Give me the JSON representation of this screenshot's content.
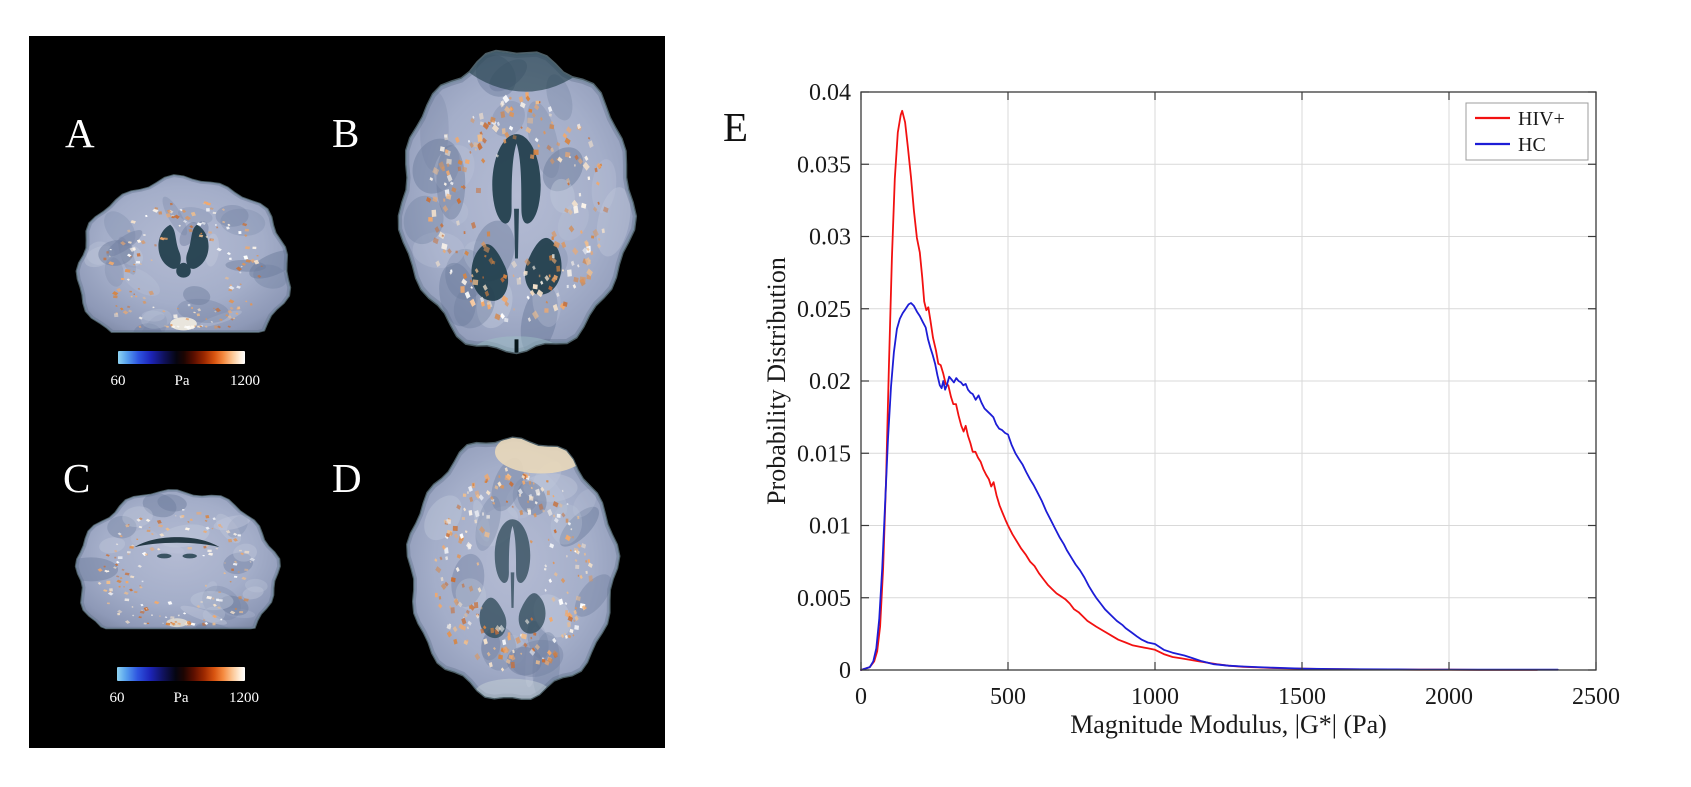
{
  "panel": {
    "labels": {
      "a": "A",
      "b": "B",
      "c": "C",
      "d": "D"
    },
    "colorbars": [
      {
        "min": "60",
        "unit": "Pa",
        "max": "1200"
      },
      {
        "min": "60",
        "unit": "Pa",
        "max": "1200"
      }
    ]
  },
  "chart": {
    "label": "E"
  },
  "chart_data": {
    "type": "line",
    "title": "",
    "xlabel": "Magnitude Modulus, |G*| (Pa)",
    "ylabel": "Probability Distribution",
    "xlim": [
      0,
      2500
    ],
    "ylim": [
      0,
      0.04
    ],
    "xticks": [
      0,
      500,
      1000,
      1500,
      2000,
      2500
    ],
    "xtick_labels": [
      "0",
      "500",
      "1000",
      "1500",
      "2000",
      "2500"
    ],
    "yticks": [
      0,
      0.005,
      0.01,
      0.015,
      0.02,
      0.025,
      0.03,
      0.035,
      0.04
    ],
    "ytick_labels": [
      "0",
      "0.005",
      "0.01",
      "0.015",
      "0.02",
      "0.025",
      "0.03",
      "0.035",
      "0.04"
    ],
    "grid": true,
    "legend_position": "top-right",
    "axis_color": "#3a3a3a",
    "grid_color": "#d9d9d9",
    "series": [
      {
        "name": "HIV+",
        "color": "#f21111",
        "points": [
          [
            0,
            0
          ],
          [
            30,
            0.0002
          ],
          [
            45,
            0.0006
          ],
          [
            55,
            0.0013
          ],
          [
            65,
            0.003
          ],
          [
            75,
            0.007
          ],
          [
            85,
            0.013
          ],
          [
            95,
            0.021
          ],
          [
            105,
            0.0285
          ],
          [
            115,
            0.034
          ],
          [
            125,
            0.0372
          ],
          [
            135,
            0.0384
          ],
          [
            140,
            0.0387
          ],
          [
            150,
            0.0379
          ],
          [
            160,
            0.0361
          ],
          [
            170,
            0.0341
          ],
          [
            180,
            0.0318
          ],
          [
            190,
            0.0299
          ],
          [
            200,
            0.0289
          ],
          [
            208,
            0.0272
          ],
          [
            215,
            0.0255
          ],
          [
            222,
            0.0249
          ],
          [
            229,
            0.0251
          ],
          [
            236,
            0.0242
          ],
          [
            245,
            0.023
          ],
          [
            255,
            0.0221
          ],
          [
            263,
            0.0212
          ],
          [
            271,
            0.0211
          ],
          [
            280,
            0.0205
          ],
          [
            288,
            0.0198
          ],
          [
            297,
            0.0197
          ],
          [
            306,
            0.0189
          ],
          [
            314,
            0.0184
          ],
          [
            323,
            0.0184
          ],
          [
            332,
            0.0176
          ],
          [
            341,
            0.0169
          ],
          [
            349,
            0.0165
          ],
          [
            356,
            0.0169
          ],
          [
            364,
            0.0162
          ],
          [
            372,
            0.0157
          ],
          [
            380,
            0.0151
          ],
          [
            389,
            0.0151
          ],
          [
            398,
            0.0147
          ],
          [
            407,
            0.0144
          ],
          [
            416,
            0.0139
          ],
          [
            426,
            0.0135
          ],
          [
            435,
            0.0132
          ],
          [
            443,
            0.0127
          ],
          [
            451,
            0.013
          ],
          [
            461,
            0.0121
          ],
          [
            471,
            0.0114
          ],
          [
            481,
            0.0109
          ],
          [
            491,
            0.0104
          ],
          [
            500,
            0.01
          ],
          [
            515,
            0.0094
          ],
          [
            530,
            0.0089
          ],
          [
            545,
            0.0084
          ],
          [
            560,
            0.008
          ],
          [
            575,
            0.0075
          ],
          [
            590,
            0.0072
          ],
          [
            605,
            0.0067
          ],
          [
            620,
            0.0063
          ],
          [
            635,
            0.0059
          ],
          [
            650,
            0.0056
          ],
          [
            665,
            0.0053
          ],
          [
            680,
            0.0051
          ],
          [
            695,
            0.0049
          ],
          [
            710,
            0.0046
          ],
          [
            725,
            0.0042
          ],
          [
            740,
            0.004
          ],
          [
            755,
            0.0037
          ],
          [
            770,
            0.0034
          ],
          [
            785,
            0.0032
          ],
          [
            800,
            0.003
          ],
          [
            825,
            0.0027
          ],
          [
            850,
            0.0024
          ],
          [
            875,
            0.0021
          ],
          [
            900,
            0.0019
          ],
          [
            925,
            0.0017
          ],
          [
            950,
            0.0016
          ],
          [
            975,
            0.0015
          ],
          [
            1000,
            0.0014
          ],
          [
            1030,
            0.0011
          ],
          [
            1060,
            0.0009
          ],
          [
            1090,
            0.0008
          ],
          [
            1120,
            0.0007
          ],
          [
            1150,
            0.0006
          ],
          [
            1180,
            0.0005
          ],
          [
            1210,
            0.0004
          ],
          [
            1250,
            0.0003
          ],
          [
            1300,
            0.00022
          ],
          [
            1350,
            0.00018
          ],
          [
            1400,
            0.00014
          ],
          [
            1450,
            0.00011
          ],
          [
            1500,
            9e-05
          ],
          [
            1600,
            6e-05
          ],
          [
            1700,
            4e-05
          ],
          [
            1800,
            3e-05
          ],
          [
            1900,
            2e-05
          ],
          [
            2000,
            2e-05
          ],
          [
            2100,
            1e-05
          ],
          [
            2200,
            1e-05
          ],
          [
            2300,
            1e-05
          ]
        ]
      },
      {
        "name": "HC",
        "color": "#1d1dd6",
        "points": [
          [
            0,
            0
          ],
          [
            30,
            0.0002
          ],
          [
            42,
            0.0006
          ],
          [
            52,
            0.0015
          ],
          [
            62,
            0.0035
          ],
          [
            72,
            0.007
          ],
          [
            82,
            0.0115
          ],
          [
            92,
            0.016
          ],
          [
            102,
            0.0196
          ],
          [
            112,
            0.022
          ],
          [
            122,
            0.0236
          ],
          [
            132,
            0.0243
          ],
          [
            142,
            0.0247
          ],
          [
            152,
            0.025
          ],
          [
            162,
            0.0253
          ],
          [
            170,
            0.0254
          ],
          [
            180,
            0.0252
          ],
          [
            190,
            0.0248
          ],
          [
            200,
            0.0245
          ],
          [
            210,
            0.0241
          ],
          [
            220,
            0.0237
          ],
          [
            228,
            0.0229
          ],
          [
            236,
            0.0223
          ],
          [
            244,
            0.0218
          ],
          [
            252,
            0.0212
          ],
          [
            260,
            0.0204
          ],
          [
            268,
            0.0197
          ],
          [
            274,
            0.0195
          ],
          [
            280,
            0.02
          ],
          [
            286,
            0.0194
          ],
          [
            292,
            0.0197
          ],
          [
            300,
            0.0203
          ],
          [
            308,
            0.0201
          ],
          [
            316,
            0.0199
          ],
          [
            324,
            0.0202
          ],
          [
            332,
            0.02
          ],
          [
            340,
            0.0199
          ],
          [
            348,
            0.0197
          ],
          [
            356,
            0.0198
          ],
          [
            364,
            0.0194
          ],
          [
            372,
            0.0192
          ],
          [
            380,
            0.0191
          ],
          [
            390,
            0.0187
          ],
          [
            400,
            0.019
          ],
          [
            410,
            0.0185
          ],
          [
            420,
            0.0181
          ],
          [
            430,
            0.0179
          ],
          [
            440,
            0.0177
          ],
          [
            450,
            0.0175
          ],
          [
            460,
            0.017
          ],
          [
            470,
            0.0167
          ],
          [
            480,
            0.0166
          ],
          [
            490,
            0.0164
          ],
          [
            500,
            0.0163
          ],
          [
            512,
            0.0156
          ],
          [
            525,
            0.015
          ],
          [
            537,
            0.0146
          ],
          [
            550,
            0.0142
          ],
          [
            562,
            0.0137
          ],
          [
            575,
            0.0132
          ],
          [
            587,
            0.0128
          ],
          [
            600,
            0.0123
          ],
          [
            615,
            0.0117
          ],
          [
            630,
            0.011
          ],
          [
            645,
            0.0104
          ],
          [
            660,
            0.0098
          ],
          [
            675,
            0.0092
          ],
          [
            690,
            0.0087
          ],
          [
            700,
            0.0083
          ],
          [
            715,
            0.0078
          ],
          [
            730,
            0.0073
          ],
          [
            745,
            0.0069
          ],
          [
            760,
            0.0064
          ],
          [
            775,
            0.0058
          ],
          [
            790,
            0.0053
          ],
          [
            800,
            0.005
          ],
          [
            815,
            0.0046
          ],
          [
            830,
            0.0042
          ],
          [
            850,
            0.0038
          ],
          [
            870,
            0.0034
          ],
          [
            890,
            0.0031
          ],
          [
            900,
            0.0029
          ],
          [
            920,
            0.0026
          ],
          [
            940,
            0.0023
          ],
          [
            955,
            0.0021
          ],
          [
            975,
            0.0019
          ],
          [
            1000,
            0.0018
          ],
          [
            1030,
            0.0014
          ],
          [
            1060,
            0.0012
          ],
          [
            1100,
            0.001
          ],
          [
            1130,
            0.0008
          ],
          [
            1160,
            0.0006
          ],
          [
            1200,
            0.0004
          ],
          [
            1250,
            0.0003
          ],
          [
            1300,
            0.00024
          ],
          [
            1350,
            0.0002
          ],
          [
            1400,
            0.00016
          ],
          [
            1450,
            0.00013
          ],
          [
            1500,
            0.0001
          ],
          [
            1600,
            7e-05
          ],
          [
            1700,
            5e-05
          ],
          [
            1800,
            4e-05
          ],
          [
            1900,
            3e-05
          ],
          [
            2000,
            3e-05
          ],
          [
            2100,
            2e-05
          ],
          [
            2200,
            2e-05
          ],
          [
            2300,
            2e-05
          ],
          [
            2370,
            2e-05
          ]
        ]
      }
    ]
  }
}
